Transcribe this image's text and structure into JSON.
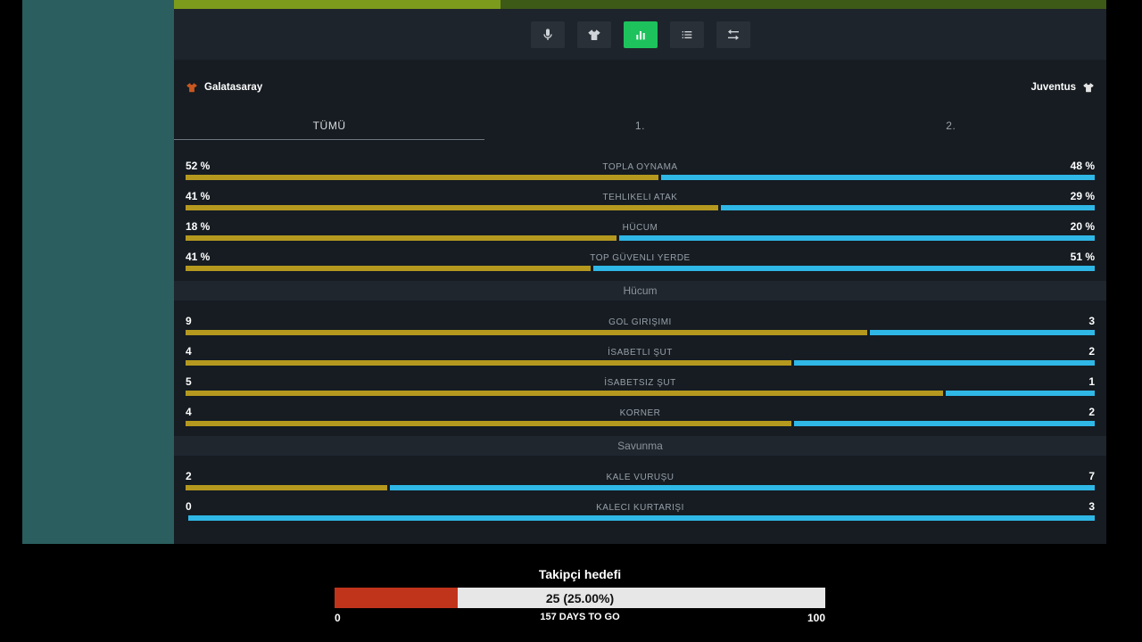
{
  "colors": {
    "accent_green": "#1ec25d",
    "bar_home": "#b5991f",
    "bar_away": "#2fb7e6",
    "home_shirt": "#c9571f",
    "away_shirt": "#e3e3e3",
    "progress_red": "#c1341c",
    "top_bright": "#7c9b1d",
    "top_dark": "#3d5a16",
    "sidebar_teal": "#2b5e5e"
  },
  "top_bar": {
    "progress_percent": 35
  },
  "toolbar": {
    "buttons": [
      {
        "name": "microphone",
        "active": false
      },
      {
        "name": "jersey",
        "active": false
      },
      {
        "name": "stats-chart",
        "active": true
      },
      {
        "name": "list",
        "active": false
      },
      {
        "name": "swap",
        "active": false
      }
    ]
  },
  "match": {
    "home_team": "Galatasaray",
    "away_team": "Juventus"
  },
  "tabs": [
    {
      "label": "TÜMÜ",
      "active": true
    },
    {
      "label": "1.",
      "active": false
    },
    {
      "label": "2.",
      "active": false
    }
  ],
  "stats": {
    "sections": [
      {
        "header": "",
        "rows": [
          {
            "label": "TOPLA OYNAMA",
            "home": 52,
            "away": 48,
            "home_text": "52 %",
            "away_text": "48 %"
          },
          {
            "label": "TEHLIKELI ATAK",
            "home": 41,
            "away": 29,
            "home_text": "41 %",
            "away_text": "29 %"
          },
          {
            "label": "HÜCUM",
            "home": 18,
            "away": 20,
            "home_text": "18 %",
            "away_text": "20 %"
          },
          {
            "label": "TOP GÜVENLI YERDE",
            "home": 41,
            "away": 51,
            "home_text": "41 %",
            "away_text": "51 %"
          }
        ]
      },
      {
        "header": "Hücum",
        "rows": [
          {
            "label": "GOL GIRIŞIMI",
            "home": 9,
            "away": 3,
            "home_text": "9",
            "away_text": "3"
          },
          {
            "label": "İSABETLI ŞUT",
            "home": 4,
            "away": 2,
            "home_text": "4",
            "away_text": "2"
          },
          {
            "label": "İSABETSIZ ŞUT",
            "home": 5,
            "away": 1,
            "home_text": "5",
            "away_text": "1"
          },
          {
            "label": "KORNER",
            "home": 4,
            "away": 2,
            "home_text": "4",
            "away_text": "2"
          }
        ]
      },
      {
        "header": "Savunma",
        "rows": [
          {
            "label": "KALE VURUŞU",
            "home": 2,
            "away": 7,
            "home_text": "2",
            "away_text": "7"
          },
          {
            "label": "KALECI KURTARIŞI",
            "home": 0,
            "away": 3,
            "home_text": "0",
            "away_text": "3"
          }
        ]
      }
    ]
  },
  "follower_goal": {
    "title": "Takipçi hedefi",
    "progress_text": "25 (25.00%)",
    "progress_percent": 25,
    "scale_min": "0",
    "scale_max": "100",
    "countdown": "157 DAYS TO GO"
  }
}
